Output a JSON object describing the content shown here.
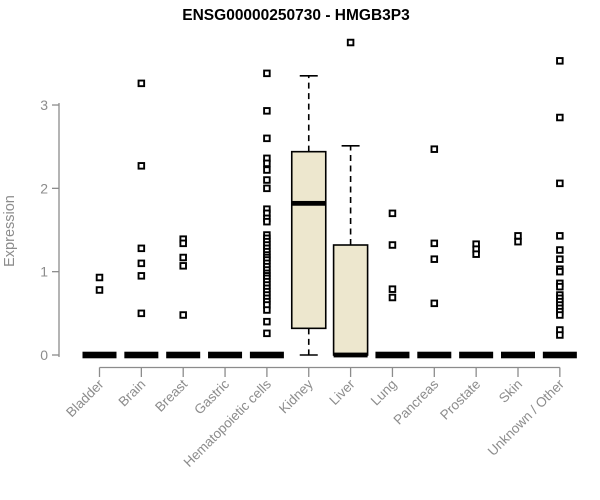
{
  "chart_data": {
    "type": "boxplot",
    "title": "ENSG00000250730 - HMGB3P3",
    "xlabel": "",
    "ylabel": "Expression",
    "y_ticks": [
      0,
      1,
      2,
      3
    ],
    "ylim": [
      -0.15,
      3.9
    ],
    "grid": false,
    "legend": "none",
    "categories": [
      "Bladder",
      "Brain",
      "Breast",
      "Gastric",
      "Hematopoietic cells",
      "Kidney",
      "Liver",
      "Lung",
      "Pancreas",
      "Prostate",
      "Skin",
      "Unknown / Other"
    ],
    "boxes": [
      {
        "category": "Bladder",
        "whisker_low": 0,
        "q1": 0,
        "median": 0,
        "q3": 0,
        "whisker_high": 0,
        "outliers": [
          0.93,
          0.78
        ]
      },
      {
        "category": "Brain",
        "whisker_low": 0,
        "q1": 0,
        "median": 0,
        "q3": 0,
        "whisker_high": 0,
        "outliers": [
          3.26,
          2.27,
          1.28,
          1.1,
          0.95,
          0.5
        ]
      },
      {
        "category": "Breast",
        "whisker_low": 0,
        "q1": 0,
        "median": 0,
        "q3": 0,
        "whisker_high": 0,
        "outliers": [
          1.39,
          1.34,
          1.17,
          1.07,
          0.48
        ]
      },
      {
        "category": "Gastric",
        "whisker_low": 0,
        "q1": 0,
        "median": 0,
        "q3": 0,
        "whisker_high": 0,
        "outliers": []
      },
      {
        "category": "Hematopoietic cells",
        "whisker_low": 0,
        "q1": 0,
        "median": 0,
        "q3": 0,
        "whisker_high": 0,
        "outliers": [
          3.38,
          2.93,
          2.6,
          2.36,
          2.3,
          2.22,
          2.1,
          2.0,
          1.75,
          1.7,
          1.64,
          1.6,
          1.44,
          1.4,
          1.36,
          1.32,
          1.28,
          1.24,
          1.2,
          1.17,
          1.14,
          1.1,
          1.06,
          1.02,
          0.98,
          0.95,
          0.92,
          0.88,
          0.84,
          0.8,
          0.76,
          0.72,
          0.68,
          0.64,
          0.6,
          0.54,
          0.4,
          0.26
        ]
      },
      {
        "category": "Kidney",
        "whisker_low": 0,
        "q1": 0.32,
        "median": 1.82,
        "q3": 2.44,
        "whisker_high": 3.35,
        "outliers": []
      },
      {
        "category": "Liver",
        "whisker_low": 0,
        "q1": 0,
        "median": 0,
        "q3": 1.32,
        "whisker_high": 2.51,
        "outliers": [
          3.75
        ]
      },
      {
        "category": "Lung",
        "whisker_low": 0,
        "q1": 0,
        "median": 0,
        "q3": 0,
        "whisker_high": 0,
        "outliers": [
          1.7,
          1.32,
          0.79,
          0.69
        ]
      },
      {
        "category": "Pancreas",
        "whisker_low": 0,
        "q1": 0,
        "median": 0,
        "q3": 0,
        "whisker_high": 0,
        "outliers": [
          2.47,
          1.34,
          1.15,
          0.62
        ]
      },
      {
        "category": "Prostate",
        "whisker_low": 0,
        "q1": 0,
        "median": 0,
        "q3": 0,
        "whisker_high": 0,
        "outliers": [
          1.33,
          1.27,
          1.21
        ]
      },
      {
        "category": "Skin",
        "whisker_low": 0,
        "q1": 0,
        "median": 0,
        "q3": 0,
        "whisker_high": 0,
        "outliers": [
          1.43,
          1.36
        ]
      },
      {
        "category": "Unknown / Other",
        "whisker_low": 0,
        "q1": 0,
        "median": 0,
        "q3": 0,
        "whisker_high": 0,
        "outliers": [
          3.53,
          2.85,
          2.06,
          1.43,
          1.26,
          1.15,
          1.03,
          1.0,
          0.86,
          0.82,
          0.72,
          0.68,
          0.64,
          0.6,
          0.56,
          0.52,
          0.48,
          0.3,
          0.24
        ]
      }
    ],
    "colors": {
      "box_fill": "#EDE7CE",
      "box_border": "#000000",
      "median": "#000000",
      "point_stroke": "#000000",
      "point_fill": "#FFFFFF",
      "axis": "#8C8C8C",
      "label": "#8C8C8C",
      "title": "#000000",
      "background": "#FFFFFF"
    }
  }
}
